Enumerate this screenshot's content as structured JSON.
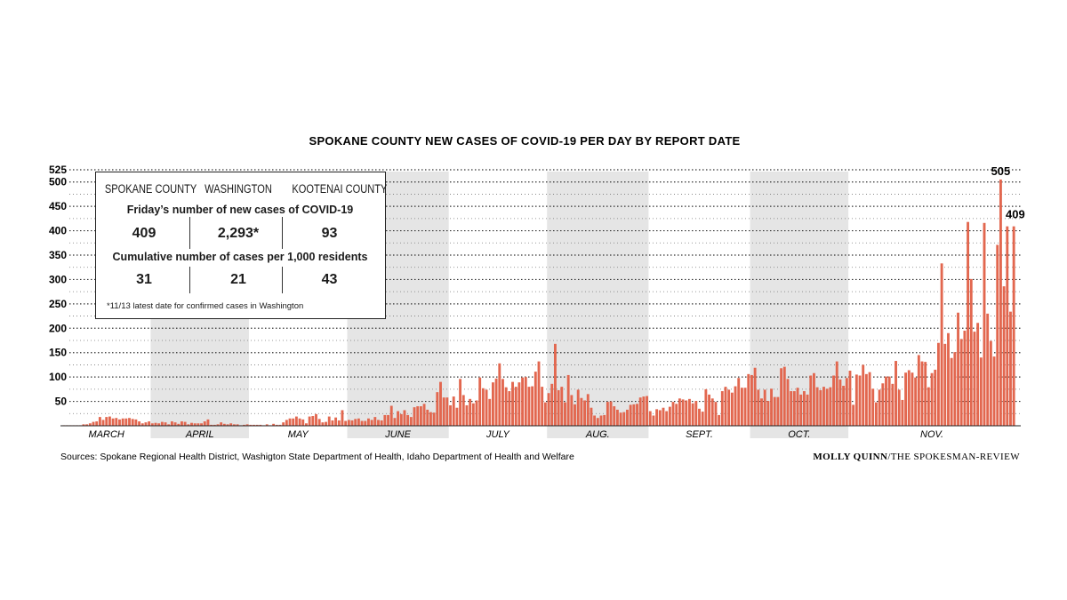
{
  "chart_data": {
    "type": "bar",
    "title": "SPOKANE COUNTY NEW CASES OF COVID-19 PER DAY BY REPORT DATE",
    "ylim": [
      0,
      525
    ],
    "yticks": [
      50,
      100,
      150,
      200,
      250,
      300,
      350,
      400,
      450,
      500,
      525
    ],
    "grid": true,
    "bar_color": "#e2674f",
    "shade_color": "#e5e5e5",
    "months": [
      "MARCH",
      "APRIL",
      "MAY",
      "JUNE",
      "JULY",
      "AUG.",
      "SEPT.",
      "OCT.",
      "NOV."
    ],
    "shaded_months": [
      "APRIL",
      "JUNE",
      "AUG.",
      "OCT."
    ],
    "values": [
      1,
      1,
      1,
      1,
      1,
      1,
      3,
      3,
      5,
      8,
      9,
      18,
      12,
      18,
      19,
      15,
      16,
      13,
      15,
      15,
      16,
      14,
      13,
      9,
      5,
      7,
      9,
      5,
      6,
      5,
      8,
      7,
      3,
      9,
      7,
      4,
      9,
      8,
      3,
      6,
      5,
      5,
      5,
      9,
      13,
      2,
      2,
      3,
      7,
      4,
      3,
      5,
      3,
      3,
      0,
      2,
      3,
      2,
      2,
      2,
      2,
      1,
      3,
      0,
      4,
      2,
      2,
      7,
      12,
      15,
      15,
      19,
      15,
      13,
      5,
      19,
      20,
      24,
      14,
      7,
      8,
      19,
      11,
      17,
      11,
      32,
      10,
      12,
      11,
      14,
      15,
      10,
      10,
      15,
      12,
      18,
      12,
      11,
      22,
      22,
      41,
      16,
      30,
      24,
      32,
      22,
      18,
      38,
      40,
      40,
      45,
      33,
      28,
      27,
      69,
      90,
      58,
      58,
      42,
      60,
      37,
      96,
      63,
      42,
      55,
      46,
      52,
      99,
      77,
      74,
      55,
      89,
      97,
      128,
      96,
      79,
      71,
      90,
      80,
      89,
      99,
      100,
      80,
      81,
      111,
      132,
      80,
      48,
      67,
      86,
      168,
      73,
      80,
      48,
      104,
      63,
      44,
      74,
      57,
      52,
      65,
      37,
      21,
      16,
      21,
      22,
      49,
      50,
      40,
      33,
      27,
      28,
      33,
      43,
      44,
      45,
      58,
      60,
      61,
      30,
      21,
      34,
      32,
      37,
      30,
      39,
      49,
      45,
      56,
      54,
      52,
      55,
      46,
      51,
      35,
      29,
      75,
      64,
      56,
      49,
      22,
      71,
      80,
      74,
      68,
      81,
      98,
      78,
      78,
      106,
      104,
      119,
      74,
      56,
      74,
      51,
      76,
      59,
      59,
      118,
      121,
      96,
      71,
      71,
      78,
      64,
      71,
      64,
      103,
      108,
      79,
      73,
      80,
      76,
      79,
      103,
      132,
      95,
      82,
      98,
      113,
      43,
      105,
      103,
      125,
      106,
      110,
      76,
      48,
      74,
      87,
      101,
      101,
      86,
      133,
      74,
      53,
      109,
      114,
      109,
      99,
      145,
      132,
      131,
      79,
      108,
      115,
      170,
      333,
      168,
      190,
      139,
      151,
      232,
      178,
      195,
      418,
      301,
      193,
      211,
      140,
      416,
      230,
      174,
      142,
      371,
      505,
      286,
      409,
      234,
      409
    ]
  },
  "annotations": {
    "peak_label": "505",
    "last_label": "409"
  },
  "inset": {
    "headers": [
      "SPOKANE COUNTY",
      "WASHINGTON",
      "KOOTENAI COUNTY"
    ],
    "new_cases_title": "Friday’s number of new cases of COVID-19",
    "new_cases": [
      "409",
      "2,293*",
      "93"
    ],
    "cumulative_title": "Cumulative number of cases per 1,000 residents",
    "cumulative": [
      "31",
      "21",
      "43"
    ],
    "footnote": "*11/13 latest date for confirmed cases in Washington"
  },
  "footer": {
    "sources": "Sources: Spokane Regional Health District, Washigton State Department of Health, Idaho Department of Health and Welfare",
    "credit_name": "MOLLY QUINN",
    "credit_org": "/THE SPOKESMAN-REVIEW"
  }
}
